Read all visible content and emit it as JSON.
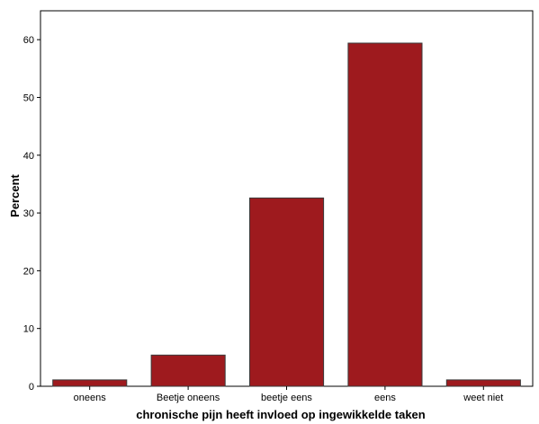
{
  "chart_data": {
    "type": "bar",
    "title": "",
    "xlabel": "chronische pijn heeft invloed op ingewikkelde taken",
    "ylabel": "Percent",
    "categories": [
      "oneens",
      "Beetje oneens",
      "beetje eens",
      "eens",
      "weet niet"
    ],
    "values": [
      1.1,
      5.4,
      32.6,
      59.4,
      1.1
    ],
    "ylim": [
      0,
      65
    ],
    "yticks": [
      0,
      10,
      20,
      30,
      40,
      50,
      60
    ],
    "grid": false,
    "colors": {
      "bar": "#9e1a1e",
      "bar_edge": "#3a3a3a",
      "frame": "#000000"
    }
  }
}
